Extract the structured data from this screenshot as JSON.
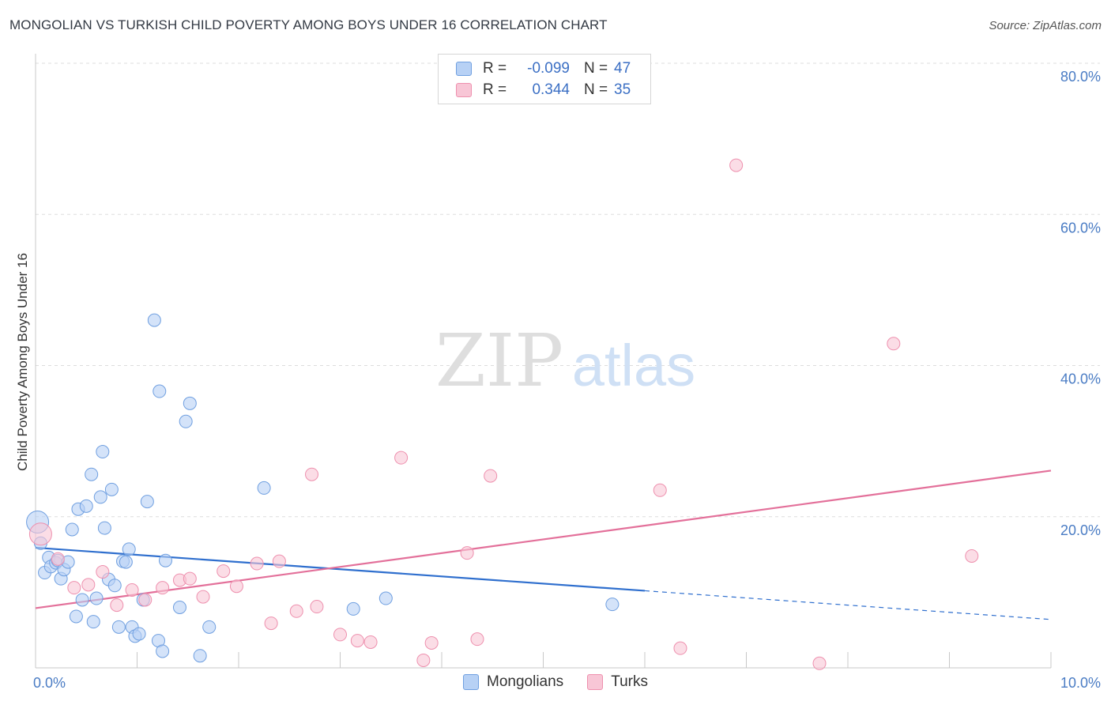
{
  "header": {
    "title": "MONGOLIAN VS TURKISH CHILD POVERTY AMONG BOYS UNDER 16 CORRELATION CHART",
    "source": "Source: ZipAtlas.com"
  },
  "legend": {
    "rows": [
      {
        "r_label": "R =",
        "r_value": "-0.099",
        "n_label": "N =",
        "n_value": "47"
      },
      {
        "r_label": "R =",
        "r_value": "0.344",
        "n_label": "N =",
        "n_value": "35"
      }
    ]
  },
  "watermark": {
    "zip": "ZIP",
    "atlas": "atlas"
  },
  "colors": {
    "mongolians_fill": "#b7d1f5",
    "mongolians_stroke": "#6f9fe0",
    "mongolians_line": "#2f6fce",
    "turks_fill": "#f8c6d6",
    "turks_stroke": "#ee90ae",
    "turks_line": "#e3709a",
    "grid": "#dddddd",
    "tick_label": "#4a7cc4"
  },
  "chart_data": {
    "type": "scatter",
    "title": "MONGOLIAN VS TURKISH CHILD POVERTY AMONG BOYS UNDER 16 CORRELATION CHART",
    "xlabel": "",
    "ylabel": "Child Poverty Among Boys Under 16",
    "xlim": [
      0,
      10
    ],
    "ylim": [
      0,
      80
    ],
    "x_tick_labels": [
      "0.0%",
      "10.0%"
    ],
    "y_tick_labels": [
      "20.0%",
      "40.0%",
      "60.0%",
      "80.0%"
    ],
    "y_ticks": [
      20,
      40,
      60,
      80
    ],
    "grid": true,
    "legend_position": "top-center",
    "series": [
      {
        "name": "Mongolians",
        "r": -0.099,
        "n": 47,
        "trend": {
          "x0": 0,
          "y0": 15.9,
          "x1": 6.0,
          "y1": 10.2,
          "dash_to_x": 10.0,
          "dash_to_y": 6.4
        },
        "points": [
          [
            0.02,
            19.3
          ],
          [
            0.05,
            16.5
          ],
          [
            0.09,
            12.6
          ],
          [
            0.13,
            14.6
          ],
          [
            0.15,
            13.4
          ],
          [
            0.2,
            13.9
          ],
          [
            0.22,
            14.2
          ],
          [
            0.25,
            11.8
          ],
          [
            0.28,
            13.0
          ],
          [
            0.32,
            14.0
          ],
          [
            0.36,
            18.3
          ],
          [
            0.4,
            6.8
          ],
          [
            0.42,
            21.0
          ],
          [
            0.46,
            9.0
          ],
          [
            0.5,
            21.4
          ],
          [
            0.55,
            25.6
          ],
          [
            0.57,
            6.1
          ],
          [
            0.6,
            9.2
          ],
          [
            0.64,
            22.6
          ],
          [
            0.66,
            28.6
          ],
          [
            0.68,
            18.5
          ],
          [
            0.72,
            11.7
          ],
          [
            0.75,
            23.6
          ],
          [
            0.78,
            10.9
          ],
          [
            0.82,
            5.4
          ],
          [
            0.86,
            14.1
          ],
          [
            0.89,
            14.0
          ],
          [
            0.92,
            15.7
          ],
          [
            0.95,
            5.4
          ],
          [
            0.98,
            4.2
          ],
          [
            1.02,
            4.5
          ],
          [
            1.06,
            9.0
          ],
          [
            1.1,
            22.0
          ],
          [
            1.17,
            46.0
          ],
          [
            1.21,
            3.6
          ],
          [
            1.22,
            36.6
          ],
          [
            1.25,
            2.2
          ],
          [
            1.28,
            14.2
          ],
          [
            1.42,
            8.0
          ],
          [
            1.48,
            32.6
          ],
          [
            1.52,
            35.0
          ],
          [
            1.62,
            1.6
          ],
          [
            1.71,
            5.4
          ],
          [
            2.25,
            23.8
          ],
          [
            3.13,
            7.8
          ],
          [
            3.45,
            9.2
          ],
          [
            5.68,
            8.4
          ]
        ]
      },
      {
        "name": "Turks",
        "r": 0.344,
        "n": 35,
        "trend": {
          "x0": 0,
          "y0": 7.9,
          "x1": 10.0,
          "y1": 26.1
        },
        "points": [
          [
            0.05,
            17.7
          ],
          [
            0.22,
            14.4
          ],
          [
            0.38,
            10.6
          ],
          [
            0.52,
            11.0
          ],
          [
            0.66,
            12.7
          ],
          [
            0.8,
            8.3
          ],
          [
            0.95,
            10.3
          ],
          [
            1.08,
            9.0
          ],
          [
            1.25,
            10.6
          ],
          [
            1.42,
            11.6
          ],
          [
            1.52,
            11.8
          ],
          [
            1.65,
            9.4
          ],
          [
            1.85,
            12.8
          ],
          [
            1.98,
            10.8
          ],
          [
            2.18,
            13.8
          ],
          [
            2.32,
            5.9
          ],
          [
            2.4,
            14.1
          ],
          [
            2.57,
            7.5
          ],
          [
            2.72,
            25.6
          ],
          [
            2.77,
            8.1
          ],
          [
            3.0,
            4.4
          ],
          [
            3.17,
            3.6
          ],
          [
            3.3,
            3.4
          ],
          [
            3.6,
            27.8
          ],
          [
            3.82,
            1.0
          ],
          [
            3.9,
            3.3
          ],
          [
            4.25,
            15.2
          ],
          [
            4.35,
            3.8
          ],
          [
            4.48,
            25.4
          ],
          [
            6.15,
            23.5
          ],
          [
            6.35,
            2.6
          ],
          [
            6.9,
            66.5
          ],
          [
            7.72,
            0.6
          ],
          [
            8.45,
            42.9
          ],
          [
            9.22,
            14.8
          ]
        ]
      }
    ]
  },
  "bottom_legend": {
    "items": [
      "Mongolians",
      "Turks"
    ]
  }
}
